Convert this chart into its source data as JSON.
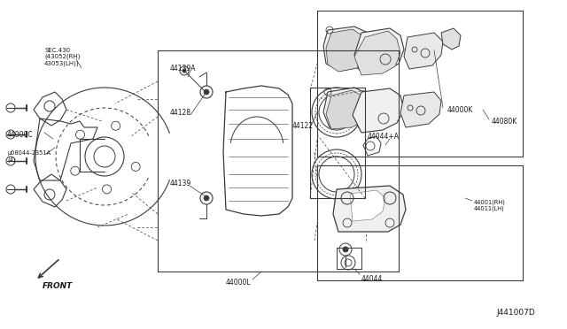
{
  "bg_color": "#ffffff",
  "line_color": "#3a3a3a",
  "text_color": "#1a1a1a",
  "diagram_id": "J441007D",
  "labels": {
    "sec430": "SEC.430\n(43052(RH)\n43053(LH))",
    "44000C": "44000C",
    "bolt": "µ08044-2351A\n(4)",
    "44139A": "44139A",
    "44128": "44128",
    "44139": "44139",
    "44000L": "44000L",
    "44122": "44122",
    "44044A": "44044+A",
    "44000K": "44000K",
    "44080K": "44080K",
    "44001RH": "44001(RH)\n44011(LH)",
    "44044": "44044",
    "front": "FRONT"
  }
}
